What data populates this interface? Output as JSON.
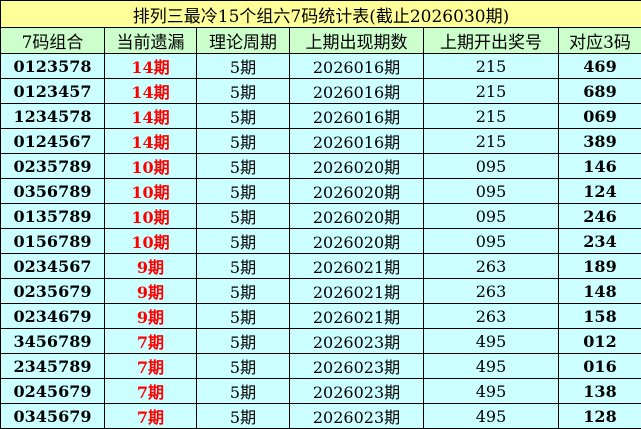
{
  "title": "排列三最冷15个组六7码统计表(截止2026030期)",
  "headers": [
    "7码组合",
    "当前遗漏",
    "理论周期",
    "上期出现期数",
    "上期开出奖号",
    "对应3码"
  ],
  "colors": {
    "title_bg": "#ffff99",
    "header_bg": "#ccffcc",
    "row_bg": "#ccffff",
    "miss_text": "#ff0000"
  },
  "rows": [
    [
      "0123578",
      "14期",
      "5期",
      "2026016期",
      "215",
      "469"
    ],
    [
      "0123457",
      "14期",
      "5期",
      "2026016期",
      "215",
      "689"
    ],
    [
      "1234578",
      "14期",
      "5期",
      "2026016期",
      "215",
      "069"
    ],
    [
      "0124567",
      "14期",
      "5期",
      "2026016期",
      "215",
      "389"
    ],
    [
      "0235789",
      "10期",
      "5期",
      "2026020期",
      "095",
      "146"
    ],
    [
      "0356789",
      "10期",
      "5期",
      "2026020期",
      "095",
      "124"
    ],
    [
      "0135789",
      "10期",
      "5期",
      "2026020期",
      "095",
      "246"
    ],
    [
      "0156789",
      "10期",
      "5期",
      "2026020期",
      "095",
      "234"
    ],
    [
      "0234567",
      "9期",
      "5期",
      "2026021期",
      "263",
      "189"
    ],
    [
      "0235679",
      "9期",
      "5期",
      "2026021期",
      "263",
      "148"
    ],
    [
      "0234679",
      "9期",
      "5期",
      "2026021期",
      "263",
      "158"
    ],
    [
      "3456789",
      "7期",
      "5期",
      "2026023期",
      "495",
      "012"
    ],
    [
      "2345789",
      "7期",
      "5期",
      "2026023期",
      "495",
      "016"
    ],
    [
      "0245679",
      "7期",
      "5期",
      "2026023期",
      "495",
      "138"
    ],
    [
      "0345679",
      "7期",
      "5期",
      "2026023期",
      "495",
      "128"
    ]
  ]
}
